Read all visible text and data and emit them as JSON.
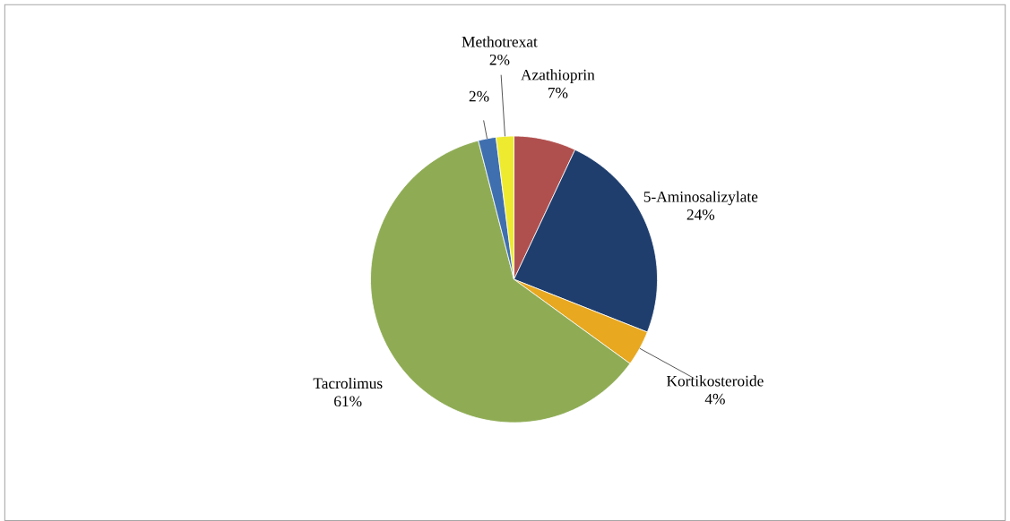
{
  "chart_data": {
    "type": "pie",
    "categories": [
      "Azathioprin",
      "5-Aminosalizylate",
      "Kortikosteroide",
      "Tacrolimus",
      null,
      "Methotrexat"
    ],
    "values": [
      7,
      24,
      4,
      61,
      2,
      2
    ],
    "value_labels": [
      "7%",
      "24%",
      "4%",
      "61%",
      "2%",
      "2%"
    ],
    "colors": [
      "#b0504e",
      "#1f3e6e",
      "#e8a820",
      "#8fac55",
      "#3f6fae",
      "#eeea30"
    ]
  }
}
